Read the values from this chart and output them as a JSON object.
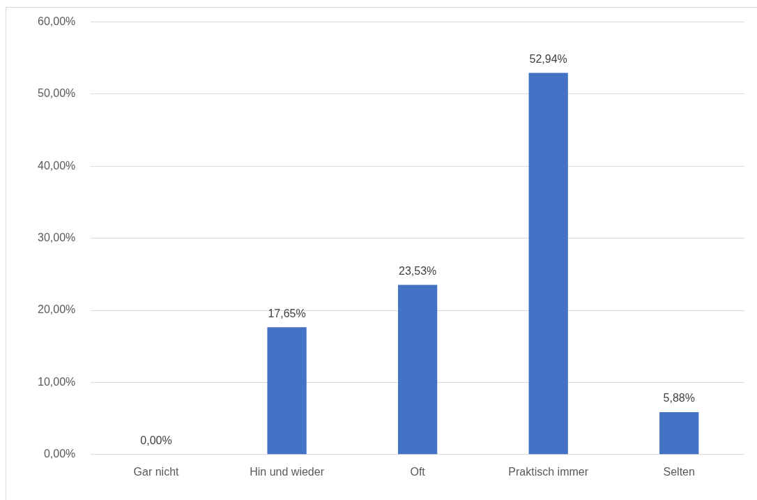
{
  "chart_data": {
    "type": "bar",
    "categories": [
      "Gar nicht",
      "Hin und wieder",
      "Oft",
      "Praktisch immer",
      "Selten"
    ],
    "values": [
      0,
      17.65,
      23.53,
      52.94,
      5.88
    ],
    "color": "#4472c4",
    "value_labels": [
      "0,00%",
      "17,65%",
      "23,53%",
      "52,94%",
      "5,88%"
    ],
    "ylim": [
      0,
      60
    ],
    "yticks": [
      {
        "value": 0,
        "label": "0,00%"
      },
      {
        "value": 10,
        "label": "10,00%"
      },
      {
        "value": 20,
        "label": "20,00%"
      },
      {
        "value": 30,
        "label": "30,00%"
      },
      {
        "value": 40,
        "label": "40,00%"
      },
      {
        "value": 50,
        "label": "50,00%"
      },
      {
        "value": 60,
        "label": "60,00%"
      }
    ],
    "grid": "y"
  }
}
